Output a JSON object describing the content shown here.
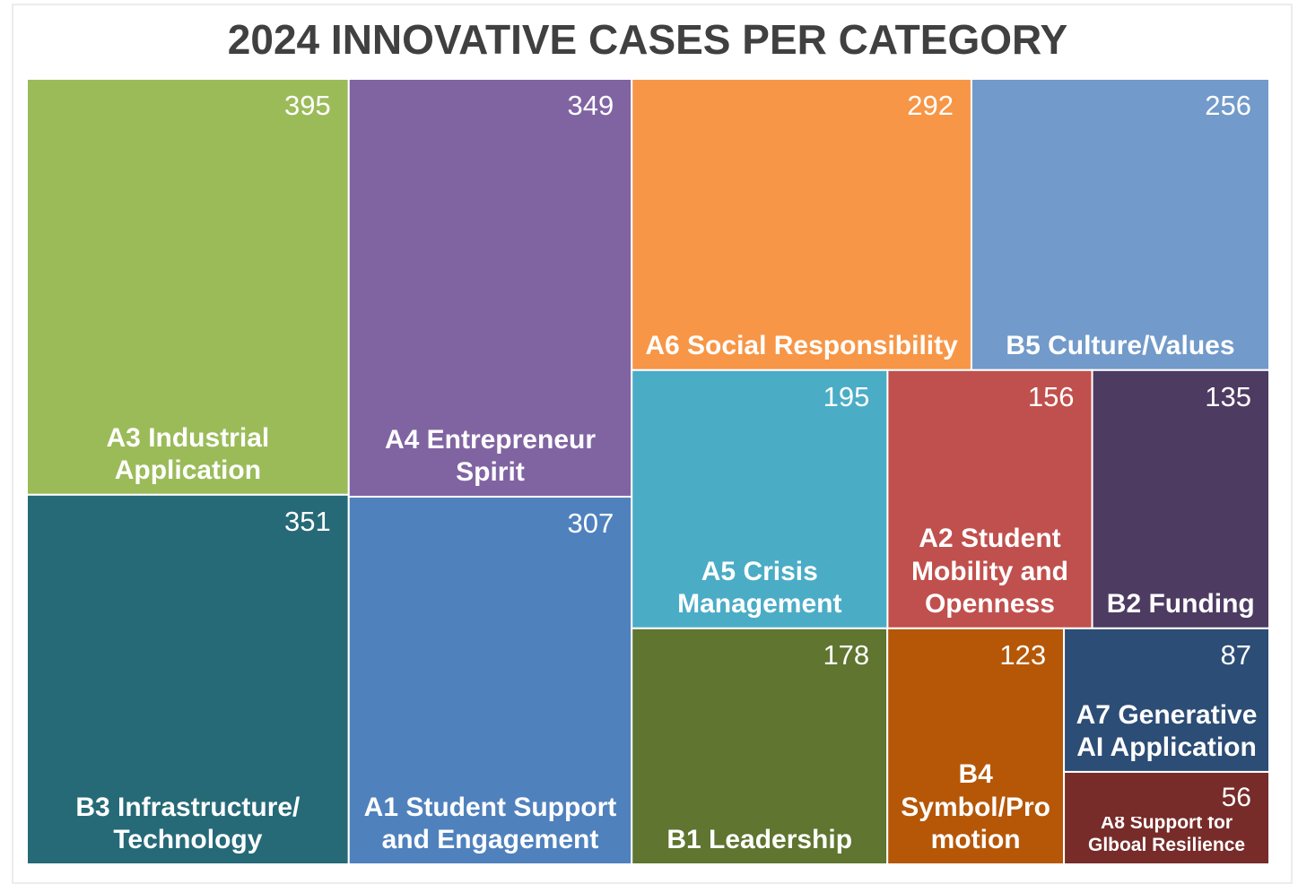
{
  "chart_data": {
    "type": "treemap",
    "title": "2024 INNOVATIVE CASES PER CATEGORY",
    "categories": [
      "A3 Industrial Application",
      "B3 Infrastructure/ Technology",
      "A4 Entrepreneur Spirit",
      "A1 Student Support and Engagement",
      "A6 Social Responsibility",
      "B5 Culture/Values",
      "A5 Crisis Management",
      "A2 Student Mobility and Openness",
      "B2 Funding",
      "B1 Leadership",
      "B4 Symbol/Promotion",
      "A7 Generative AI Application",
      "A8 Support for Glboal Resilience"
    ],
    "values": [
      395,
      351,
      349,
      307,
      292,
      256,
      195,
      156,
      135,
      178,
      123,
      87,
      56
    ],
    "colors": [
      "#9bbb59",
      "#266a78",
      "#8064a2",
      "#4f81bd",
      "#f79646",
      "#729aca",
      "#4bacc6",
      "#c0504d",
      "#4d3b62",
      "#5f7530",
      "#b65708",
      "#2c4d75",
      "#772c2a"
    ]
  }
}
